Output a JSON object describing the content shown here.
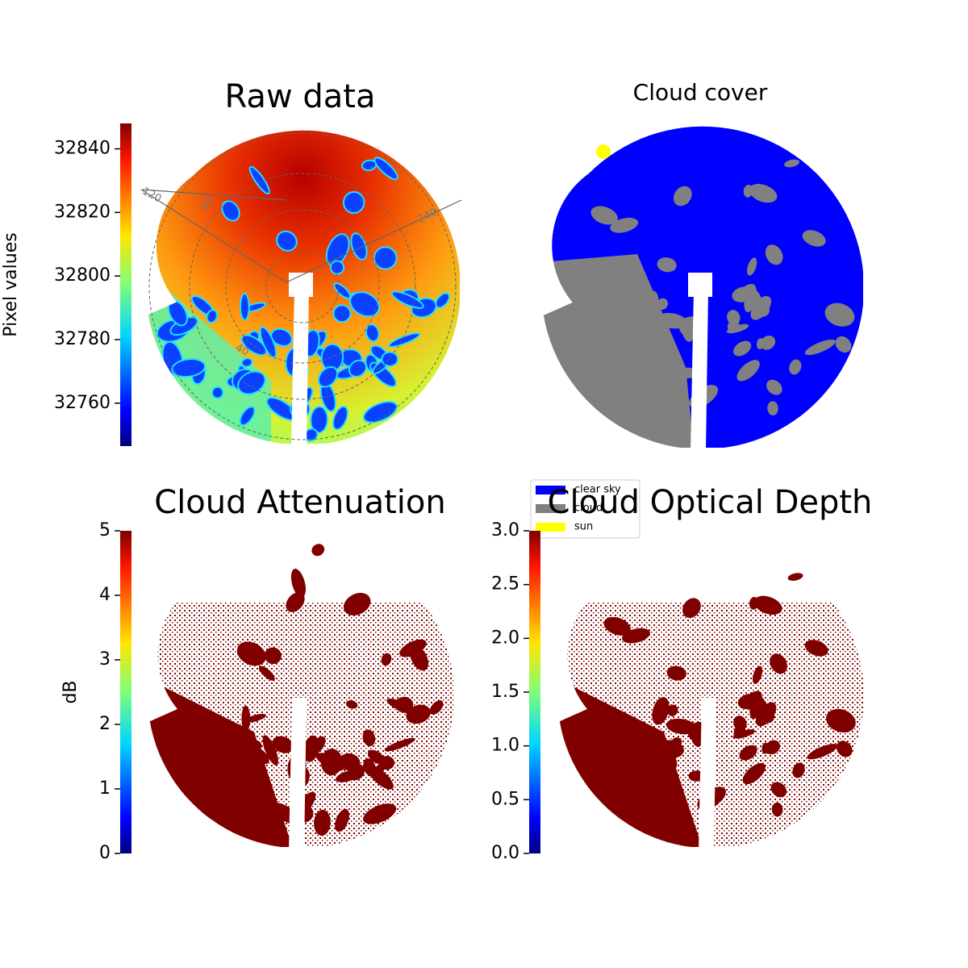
{
  "chart_data": [
    {
      "type": "image",
      "title": "Raw data",
      "ylabel": "Pixel values",
      "ylim": [
        32746.5,
        32848
      ],
      "yticks": [
        32760,
        32780,
        32800,
        32820,
        32840
      ],
      "annotations": [
        "120",
        "60",
        "240",
        "40"
      ]
    },
    {
      "type": "image",
      "title": "Cloud cover",
      "series": [
        {
          "name": "clear sky",
          "color": "#0000ff"
        },
        {
          "name": "cloud",
          "color": "#808080"
        },
        {
          "name": "sun",
          "color": "#ffff00"
        }
      ]
    },
    {
      "type": "image",
      "title": "Cloud Attenuation",
      "ylabel": "dB",
      "ylim": [
        0,
        5
      ],
      "yticks": [
        0,
        1,
        2,
        3,
        4,
        5
      ]
    },
    {
      "type": "image",
      "title": "Cloud Optical Depth",
      "ylim": [
        0,
        3
      ],
      "yticks": [
        {
          "value": 0,
          "label": "0.0"
        },
        {
          "value": 0.5,
          "label": "0.5"
        },
        {
          "value": 1,
          "label": "1.0"
        },
        {
          "value": 1.5,
          "label": "1.5"
        },
        {
          "value": 2,
          "label": "2.0"
        },
        {
          "value": 2.5,
          "label": "2.5"
        },
        {
          "value": 3,
          "label": "3.0"
        }
      ]
    }
  ]
}
